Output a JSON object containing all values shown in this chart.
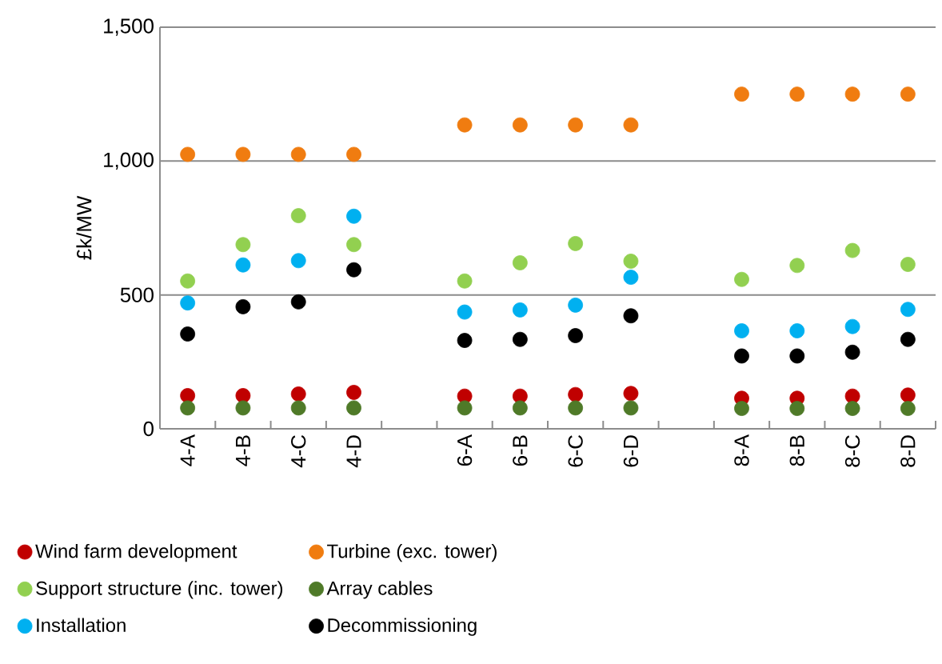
{
  "chart_data": {
    "type": "scatter",
    "ylabel": "£k/MW",
    "categories": [
      "4-A",
      "4-B",
      "4-C",
      "4-D",
      null,
      "6-A",
      "6-B",
      "6-C",
      "6-D",
      null,
      "8-A",
      "8-B",
      "8-C",
      "8-D"
    ],
    "ylim": [
      0,
      1500
    ],
    "yticks": [
      0,
      500,
      {
        "value": 1000,
        "label": "1,000"
      },
      {
        "value": 1500,
        "label": "1,500"
      }
    ],
    "grid": "y",
    "legend": "bottom",
    "marker": "circle",
    "series": [
      {
        "name": "Wind farm development",
        "color": "#c00000",
        "values": [
          124,
          124,
          130,
          136,
          null,
          122,
          122,
          128,
          132,
          null,
          114,
          114,
          122,
          126
        ]
      },
      {
        "name": "Turbine (exc. tower)",
        "color": "#f07c10",
        "values": [
          1025,
          1025,
          1025,
          1025,
          null,
          1135,
          1135,
          1135,
          1135,
          null,
          1250,
          1250,
          1250,
          1250
        ]
      },
      {
        "name": "Support structure (inc. tower)",
        "color": "#92d050",
        "values": [
          552,
          688,
          796,
          688,
          null,
          552,
          620,
          692,
          626,
          null,
          558,
          610,
          666,
          614
        ]
      },
      {
        "name": "Array cables",
        "color": "#4f7a28",
        "values": [
          78,
          78,
          78,
          78,
          null,
          78,
          78,
          78,
          78,
          null,
          76,
          76,
          76,
          76
        ]
      },
      {
        "name": "Installation",
        "color": "#00b0f0",
        "values": [
          470,
          612,
          628,
          794,
          null,
          436,
          444,
          462,
          566,
          null,
          366,
          366,
          382,
          446
        ]
      },
      {
        "name": "Decommissioning",
        "color": "#000000",
        "values": [
          354,
          456,
          474,
          594,
          null,
          330,
          334,
          348,
          422,
          null,
          272,
          272,
          286,
          334
        ]
      }
    ]
  }
}
